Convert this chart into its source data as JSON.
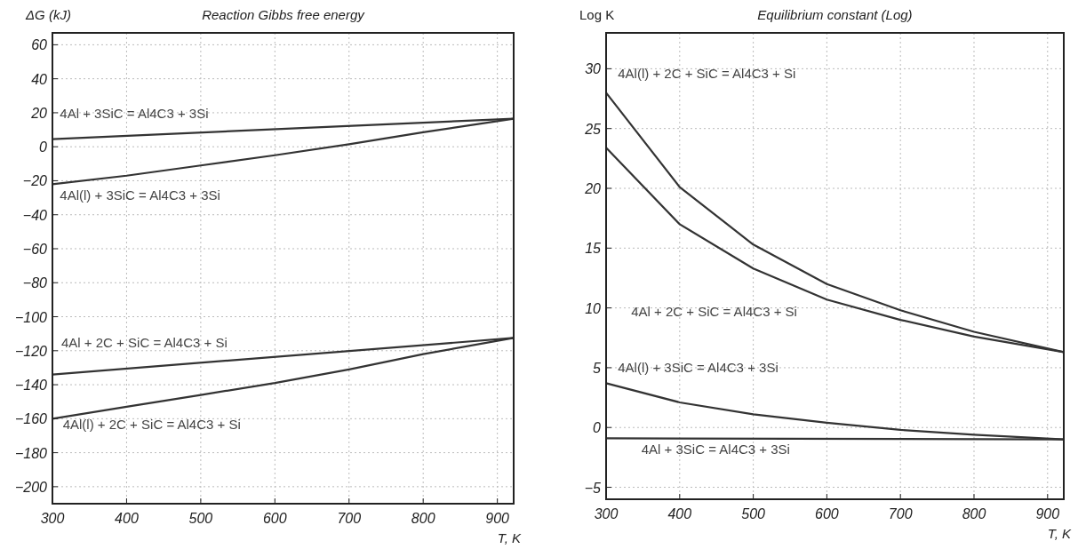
{
  "chart_data": [
    {
      "type": "line",
      "title": "Reaction Gibbs free energy",
      "ylabel": "ΔG (kJ)",
      "xlabel": "T, K",
      "xlim": [
        300,
        922
      ],
      "xticks": [
        300,
        400,
        500,
        600,
        700,
        800,
        900
      ],
      "ylim": [
        -210,
        67
      ],
      "yticks": [
        60,
        40,
        20,
        0,
        {
          "value": -20,
          "label": "−20"
        },
        {
          "value": -40,
          "label": "−40"
        },
        {
          "value": -60,
          "label": "−60"
        },
        {
          "value": -80,
          "label": "−80"
        },
        {
          "value": -100,
          "label": "−100"
        },
        {
          "value": -120,
          "label": "−120"
        },
        {
          "value": -140,
          "label": "−140"
        },
        {
          "value": -160,
          "label": "−160"
        },
        {
          "value": -180,
          "label": "−180"
        },
        {
          "value": -200,
          "label": "−200"
        }
      ],
      "grid": true,
      "line_style": "solid",
      "series": [
        {
          "name": "4Al + 3SiC = Al4C3 + 3Si",
          "color": "#333333",
          "x": [
            300,
            922
          ],
          "values": [
            4.5,
            16.5
          ]
        },
        {
          "name": "4Al(l) + 3SiC = Al4C3 + 3Si",
          "color": "#333333",
          "x": [
            300,
            400,
            500,
            600,
            700,
            800,
            922
          ],
          "values": [
            -22,
            -17,
            -11,
            -5,
            1.5,
            8.5,
            16.5
          ]
        },
        {
          "name": "4Al + 2C + SiC = Al4C3 + Si",
          "color": "#333333",
          "x": [
            300,
            922
          ],
          "values": [
            -134,
            -112.5
          ]
        },
        {
          "name": "4Al(l) + 2C + SiC = Al4C3 + Si",
          "color": "#333333",
          "x": [
            300,
            400,
            500,
            600,
            700,
            800,
            922
          ],
          "values": [
            -160,
            -153,
            -146,
            -139,
            -131,
            -122,
            -112.5
          ]
        }
      ]
    },
    {
      "type": "line",
      "title": "Equilibrium constant (Log)",
      "ylabel": "Log K",
      "xlabel": "T, K",
      "xlim": [
        300,
        922
      ],
      "xticks": [
        300,
        400,
        500,
        600,
        700,
        800,
        900
      ],
      "ylim": [
        -6,
        33
      ],
      "yticks": [
        30,
        25,
        20,
        15,
        10,
        5,
        0,
        {
          "value": -5,
          "label": "−5"
        }
      ],
      "grid": true,
      "line_style": "solid",
      "series": [
        {
          "name": "4Al(l) + 2C + SiC = Al4C3 + Si",
          "color": "#333333",
          "x": [
            300,
            400,
            500,
            600,
            700,
            800,
            922
          ],
          "values": [
            28,
            20.1,
            15.3,
            12,
            9.8,
            8,
            6.3
          ]
        },
        {
          "name": "4Al + 2C + SiC = Al4C3 + Si",
          "color": "#333333",
          "x": [
            300,
            400,
            500,
            600,
            700,
            800,
            922
          ],
          "values": [
            23.4,
            17,
            13.3,
            10.7,
            9,
            7.6,
            6.3
          ]
        },
        {
          "name": "4Al(l) + 3SiC = Al4C3 + 3Si",
          "color": "#333333",
          "x": [
            300,
            400,
            500,
            600,
            700,
            800,
            922
          ],
          "values": [
            3.7,
            2.1,
            1.1,
            0.4,
            -0.2,
            -0.6,
            -1
          ]
        },
        {
          "name": "4Al + 3SiC = Al4C3 + 3Si",
          "color": "#333333",
          "x": [
            300,
            922
          ],
          "values": [
            -0.9,
            -1
          ]
        }
      ]
    }
  ]
}
